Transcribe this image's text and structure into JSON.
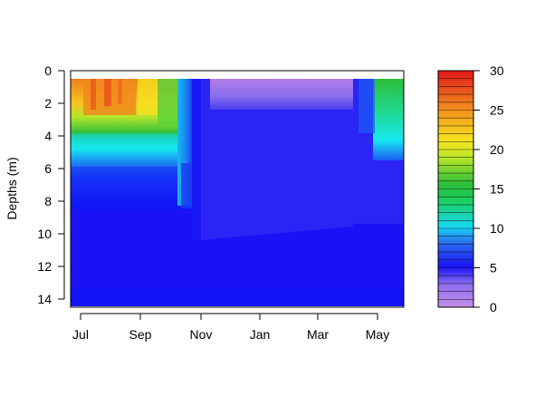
{
  "chart_data": {
    "type": "heatmap",
    "title": "",
    "ylabel": "Depths (m)",
    "xlabel": "",
    "x_ticks": [
      "Jul",
      "Sep",
      "Nov",
      "Jan",
      "Mar",
      "May"
    ],
    "y_ticks": [
      0,
      2,
      4,
      6,
      8,
      10,
      12,
      14
    ],
    "ylim": [
      14.5,
      0
    ],
    "legend": {
      "placement": "right",
      "ticks": [
        0,
        5,
        10,
        15,
        20,
        25,
        30
      ],
      "range": [
        0,
        30
      ]
    },
    "colors": {
      "hot": "#e8231a",
      "orange": "#f79a1d",
      "yellow": "#f6ec1e",
      "green": "#2dbe3a",
      "cyan": "#18e8f0",
      "blue": "#1814f5",
      "violet": "#b07ae8"
    },
    "series": [
      {
        "region": "Jul–Sep surface layer",
        "depth_range": [
          0.5,
          4
        ],
        "value_approx": 24
      },
      {
        "region": "Jul–Oct mid layer",
        "depth_range": [
          4,
          6
        ],
        "value_approx": 13
      },
      {
        "region": "Nov–Apr surface layer",
        "depth_range": [
          0.5,
          1.5
        ],
        "value_approx": 2
      },
      {
        "region": "Nov–Apr body",
        "depth_range": [
          1.5,
          9
        ],
        "value_approx": 4.5
      },
      {
        "region": "Bottom water all year",
        "depth_range": [
          9,
          14.5
        ],
        "value_approx": 5
      },
      {
        "region": "May surface warming",
        "depth_range": [
          0.5,
          4
        ],
        "value_approx": 12
      }
    ]
  }
}
